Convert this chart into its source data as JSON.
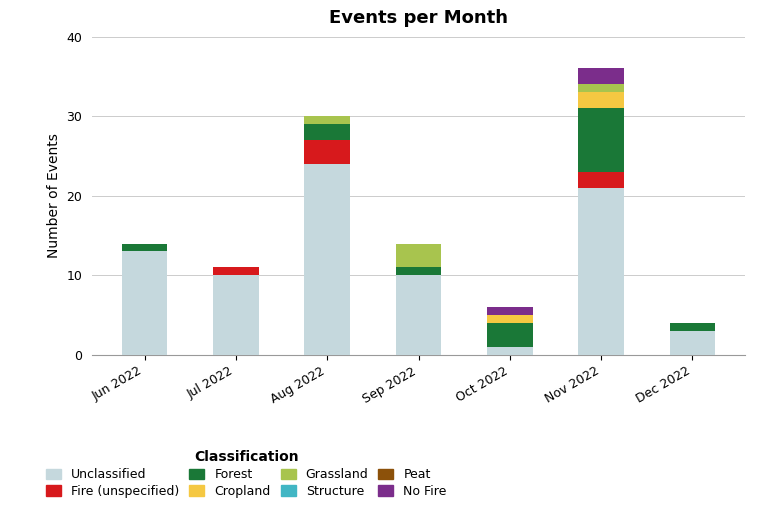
{
  "title": "Events per Month",
  "ylabel": "Number of Events",
  "months": [
    "Jun 2022",
    "Jul 2022",
    "Aug 2022",
    "Sep 2022",
    "Oct 2022",
    "Nov 2022",
    "Dec 2022"
  ],
  "ylim": [
    0,
    40
  ],
  "yticks": [
    0,
    10,
    20,
    30,
    40
  ],
  "classifications": [
    "Unclassified",
    "Fire (unspecified)",
    "Forest",
    "Cropland",
    "Grassland",
    "Structure",
    "Peat",
    "No Fire"
  ],
  "colors": {
    "Unclassified": "#c5d8dd",
    "Fire (unspecified)": "#d7191c",
    "Forest": "#1a7837",
    "Cropland": "#f5c842",
    "Grassland": "#a8c44e",
    "Structure": "#41b6c4",
    "Peat": "#8c510a",
    "No Fire": "#7b2d8b"
  },
  "data": {
    "Unclassified": [
      13,
      10,
      24,
      10,
      1,
      21,
      3
    ],
    "Fire (unspecified)": [
      0,
      1,
      3,
      0,
      0,
      2,
      0
    ],
    "Forest": [
      1,
      0,
      2,
      1,
      3,
      8,
      1
    ],
    "Cropland": [
      0,
      0,
      0,
      0,
      1,
      2,
      0
    ],
    "Grassland": [
      0,
      0,
      1,
      3,
      0,
      1,
      0
    ],
    "Structure": [
      0,
      0,
      0,
      0,
      0,
      0,
      0
    ],
    "Peat": [
      0,
      0,
      0,
      0,
      0,
      0,
      0
    ],
    "No Fire": [
      0,
      0,
      0,
      0,
      1,
      2,
      0
    ]
  },
  "legend_title": "Classification",
  "legend_order": [
    "Unclassified",
    "Fire (unspecified)",
    "Forest",
    "Cropland",
    "Grassland",
    "Structure",
    "Peat",
    "No Fire"
  ],
  "title_fontsize": 13,
  "label_fontsize": 10,
  "tick_fontsize": 9,
  "legend_fontsize": 9,
  "bar_width": 0.5
}
